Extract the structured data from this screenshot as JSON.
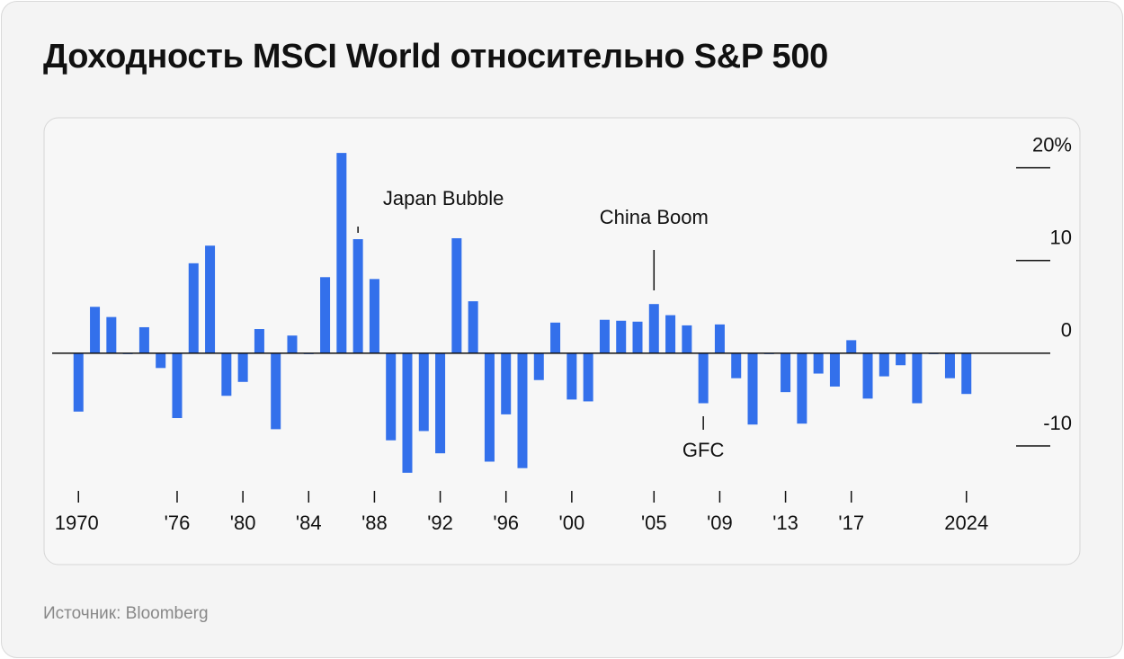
{
  "chart_data": {
    "type": "bar",
    "title": "Доходность MSCI World относительно S&P 500",
    "source": "Источник: Bloomberg",
    "color": "#3370eb",
    "x": [
      1970,
      1971,
      1972,
      1973,
      1974,
      1975,
      1976,
      1977,
      1978,
      1979,
      1980,
      1981,
      1982,
      1983,
      1984,
      1985,
      1986,
      1987,
      1988,
      1989,
      1990,
      1991,
      1992,
      1993,
      1994,
      1995,
      1996,
      1997,
      1998,
      1999,
      2000,
      2001,
      2002,
      2003,
      2004,
      2005,
      2006,
      2007,
      2008,
      2009,
      2010,
      2011,
      2012,
      2013,
      2014,
      2015,
      2016,
      2017,
      2018,
      2019,
      2020,
      2021,
      2022,
      2023,
      2024
    ],
    "values": [
      -6.3,
      5.0,
      3.9,
      -0.1,
      2.8,
      -1.6,
      -7.0,
      9.7,
      11.6,
      -4.6,
      -3.1,
      2.6,
      -8.2,
      1.9,
      -0.1,
      8.2,
      21.6,
      12.3,
      8.0,
      -9.4,
      -12.9,
      -8.4,
      -10.8,
      12.4,
      5.6,
      -11.7,
      -6.6,
      -12.4,
      -2.9,
      3.3,
      -5.0,
      -5.2,
      3.6,
      3.5,
      3.4,
      5.3,
      4.1,
      3.0,
      -5.4,
      3.1,
      -2.7,
      -7.7,
      -0.1,
      -4.2,
      -7.6,
      -2.2,
      -3.6,
      1.4,
      -4.9,
      -2.5,
      -1.3,
      -5.4,
      -0.1,
      -2.7,
      -4.4
    ],
    "xlim": [
      1968.4,
      2029.1
    ],
    "xticks": [
      {
        "value": 1970,
        "label": "1970"
      },
      {
        "value": 1976,
        "label": "'76"
      },
      {
        "value": 1980,
        "label": "'80"
      },
      {
        "value": 1984,
        "label": "'84"
      },
      {
        "value": 1988,
        "label": "'88"
      },
      {
        "value": 1992,
        "label": "'92"
      },
      {
        "value": 1996,
        "label": "'96"
      },
      {
        "value": 2000,
        "label": "'00"
      },
      {
        "value": 2005,
        "label": "'05"
      },
      {
        "value": 2009,
        "label": "'09"
      },
      {
        "value": 2013,
        "label": "'13"
      },
      {
        "value": 2017,
        "label": "'17"
      },
      {
        "value": 2024,
        "label": "2024"
      }
    ],
    "ylim": [
      -15,
      22
    ],
    "yticks": [
      {
        "value": 20,
        "label": "20%"
      },
      10,
      0,
      -10
    ],
    "annotations": [
      {
        "text": "Japan Bubble",
        "x": 1987
      },
      {
        "text": "China Boom",
        "x": 2005
      },
      {
        "text": "GFC",
        "x": 2008
      }
    ]
  }
}
